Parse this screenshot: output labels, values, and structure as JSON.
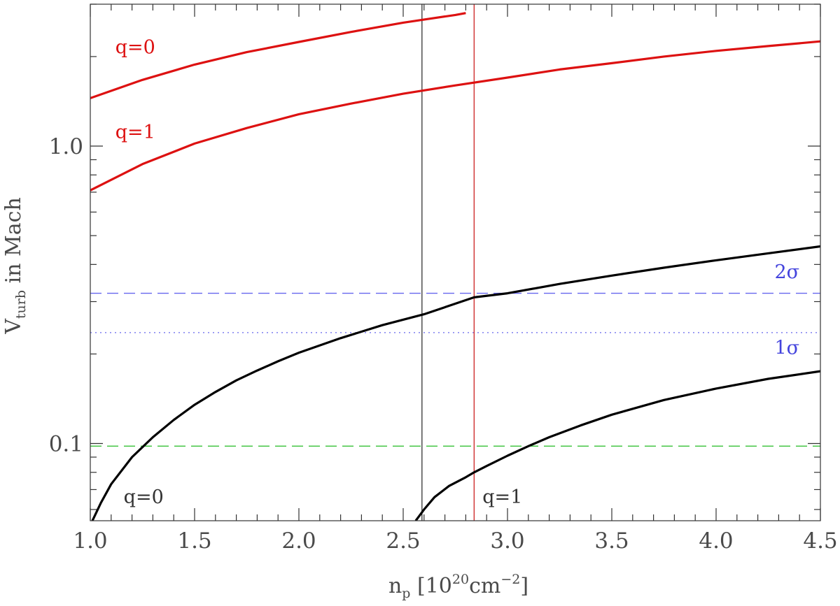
{
  "chart_data": {
    "type": "line",
    "title": "",
    "xlabel": {
      "main": "n",
      "sub": "p",
      "bracket_open": "[",
      "base": "10",
      "exp": "20",
      "unit": "cm",
      "unit_exp": "−2",
      "bracket_close": "]"
    },
    "ylabel": {
      "main": "V",
      "sub": "turb",
      "rest": " in Mach"
    },
    "xlim": [
      1.0,
      4.5
    ],
    "ylim": [
      0.055,
      3.0
    ],
    "yscale": "log",
    "x_ticks": [
      1.0,
      1.5,
      2.0,
      2.5,
      3.0,
      3.5,
      4.0,
      4.5
    ],
    "x_tick_labels": [
      "1.0",
      "1.5",
      "2.0",
      "2.5",
      "3.0",
      "3.5",
      "4.0",
      "4.5"
    ],
    "y_ticks": [
      0.1,
      1.0
    ],
    "y_tick_labels": [
      "0.1",
      "1.0"
    ],
    "grid": false,
    "series": [
      {
        "color": "#dd1111",
        "x": [
          1.0,
          1.25,
          1.5,
          1.75,
          2.0,
          2.25,
          2.5,
          2.75,
          2.8
        ],
        "y": [
          1.45,
          1.67,
          1.88,
          2.07,
          2.24,
          2.42,
          2.6,
          2.76,
          2.8
        ]
      },
      {
        "color": "#dd1111",
        "x": [
          1.0,
          1.25,
          1.5,
          1.75,
          2.0,
          2.25,
          2.5,
          2.75,
          3.0,
          3.25,
          3.5,
          3.75,
          4.0,
          4.25,
          4.5
        ],
        "y": [
          0.71,
          0.87,
          1.02,
          1.15,
          1.28,
          1.39,
          1.5,
          1.6,
          1.7,
          1.81,
          1.9,
          2.0,
          2.09,
          2.17,
          2.25
        ]
      },
      {
        "color": "#000000",
        "x": [
          1.01,
          1.05,
          1.1,
          1.2,
          1.3,
          1.4,
          1.5,
          1.6,
          1.7,
          1.8,
          1.9,
          2.0,
          2.2,
          2.4,
          2.6,
          2.84,
          3.0,
          3.25,
          3.5,
          3.75,
          4.0,
          4.25,
          4.5
        ],
        "y": [
          0.055,
          0.063,
          0.073,
          0.09,
          0.105,
          0.12,
          0.135,
          0.149,
          0.163,
          0.176,
          0.189,
          0.202,
          0.226,
          0.25,
          0.272,
          0.31,
          0.32,
          0.344,
          0.367,
          0.39,
          0.413,
          0.436,
          0.46
        ]
      },
      {
        "color": "#000000",
        "x": [
          2.56,
          2.6,
          2.65,
          2.72,
          2.8,
          2.84,
          2.9,
          3.0,
          3.1,
          3.2,
          3.35,
          3.5,
          3.75,
          4.0,
          4.25,
          4.5
        ],
        "y": [
          0.055,
          0.06,
          0.066,
          0.072,
          0.077,
          0.08,
          0.084,
          0.091,
          0.098,
          0.105,
          0.115,
          0.125,
          0.14,
          0.153,
          0.165,
          0.175
        ]
      }
    ],
    "hlines": [
      {
        "y": 0.32,
        "color": "#6666ee",
        "style": "dashed"
      },
      {
        "y": 0.236,
        "color": "#6666ee",
        "style": "dotted"
      },
      {
        "y": 0.098,
        "color": "#22bb22",
        "style": "dashed"
      }
    ],
    "vlines": [
      {
        "x": 2.59,
        "color": "#333333"
      },
      {
        "x": 2.84,
        "color": "#cc2222"
      }
    ],
    "annotations": [
      {
        "text": "q=0",
        "x": 1.12,
        "y": 2.05,
        "color": "#dd1111"
      },
      {
        "text": "q=1",
        "x": 1.12,
        "y": 1.06,
        "color": "#dd1111"
      },
      {
        "text": "2σ",
        "x": 4.28,
        "y": 0.36,
        "color": "#4444dd"
      },
      {
        "text": "1σ",
        "x": 4.28,
        "y": 0.2,
        "color": "#4444dd"
      },
      {
        "text": "q=0",
        "x": 1.16,
        "y": 0.063,
        "color": "#333333"
      },
      {
        "text": "q=1",
        "x": 2.88,
        "y": 0.063,
        "color": "#333333"
      }
    ]
  }
}
